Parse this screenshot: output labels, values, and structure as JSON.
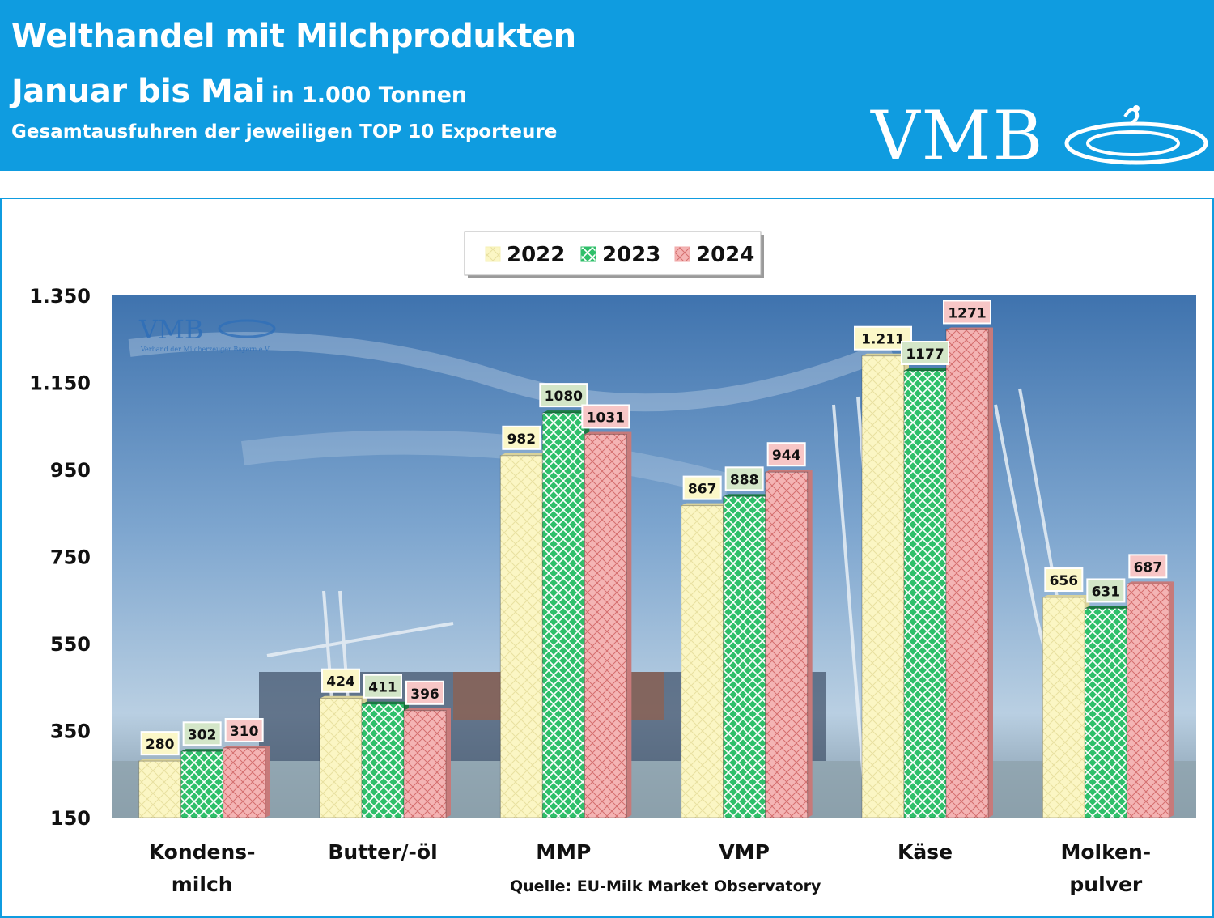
{
  "header": {
    "title": "Welthandel mit Milchprodukten",
    "period": "Januar bis Mai",
    "unit": "in 1.000 Tonnen",
    "note": "Gesamtausfuhren der jeweiligen TOP 10 Exporteure",
    "logo": "VMB"
  },
  "watermark": {
    "logo": "VMB",
    "caption": "Verband der Milcherzeuger Bayern e.V."
  },
  "source": "Quelle: EU-Milk Market Observatory",
  "colors": {
    "header_bg": "#0f9ce0",
    "s2022": "#fbf6c4",
    "s2023": "#2fbf6a",
    "s2024": "#f4b4b4"
  },
  "chart_data": {
    "type": "bar",
    "categories": [
      "Kondens-\nmilch",
      "Butter/-öl",
      "MMP",
      "VMP",
      "Käse",
      "Molken-\npulver"
    ],
    "series": [
      {
        "name": "2022",
        "values": [
          280,
          424,
          982,
          867,
          1211,
          656
        ],
        "labels": [
          "280",
          "424",
          "982",
          "867",
          "1.211",
          "656"
        ]
      },
      {
        "name": "2023",
        "values": [
          302,
          411,
          1080,
          888,
          1177,
          631
        ],
        "labels": [
          "302",
          "411",
          "1080",
          "888",
          "1177",
          "631"
        ]
      },
      {
        "name": "2024",
        "values": [
          310,
          396,
          1031,
          944,
          1271,
          687
        ],
        "labels": [
          "310",
          "396",
          "1031",
          "944",
          "1271",
          "687"
        ]
      }
    ],
    "ylim": [
      150,
      1350
    ],
    "yticks": [
      150,
      350,
      550,
      750,
      950,
      1150,
      1350
    ],
    "ytick_labels": [
      "150",
      "350",
      "550",
      "750",
      "950",
      "1.150",
      "1.350"
    ],
    "legend": "top-center",
    "grid": false
  }
}
